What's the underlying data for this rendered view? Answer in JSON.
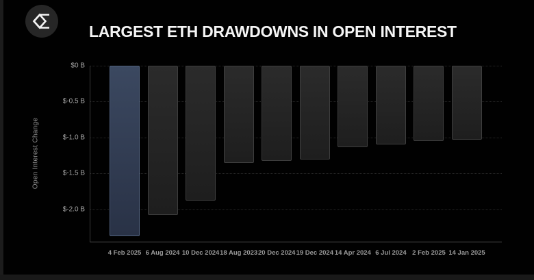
{
  "header": {
    "title": "LARGEST ETH DRAWDOWNS IN OPEN INTEREST",
    "logo_icon": "sigma-diamond-icon"
  },
  "chart_data": {
    "type": "bar",
    "title": "LARGEST ETH DRAWDOWNS IN OPEN INTEREST",
    "xlabel": "",
    "ylabel": "Open Interest Change",
    "unit": "billions USD",
    "categories": [
      "4 Feb 2025",
      "6 Aug 2024",
      "10 Dec 2024",
      "18 Aug 2023",
      "20 Dec 2024",
      "19 Dec 2024",
      "14 Apr 2024",
      "6 Jul 2024",
      "2 Feb 2025",
      "14 Jan 2025"
    ],
    "values": [
      -2.37,
      -2.08,
      -1.88,
      -1.35,
      -1.33,
      -1.31,
      -1.13,
      -1.1,
      -1.05,
      -1.03
    ],
    "highlight_index": 0,
    "ylim": [
      -2.46,
      0
    ],
    "y_ticks": [
      {
        "value": 0,
        "label": "$0 B"
      },
      {
        "value": -0.5,
        "label": "$-0.5 B"
      },
      {
        "value": -1.0,
        "label": "$-1.0 B"
      },
      {
        "value": -1.5,
        "label": "$-1.5 B"
      },
      {
        "value": -2.0,
        "label": "$-2.0 B"
      }
    ],
    "grid": "horizontal-dotted",
    "legend": "none",
    "colors": {
      "background": "#010101",
      "highlight_bar_top": "#3b4860",
      "highlight_bar_bottom": "#293246",
      "highlight_bar_border": "#52637f",
      "bar_top": "#2b2b2b",
      "bar_bottom": "#1e1e1e",
      "bar_border": "#3e3e3e",
      "title_text": "#f5f5f5",
      "axis_text": "#a6a6a6",
      "gridline": "#282828"
    }
  }
}
